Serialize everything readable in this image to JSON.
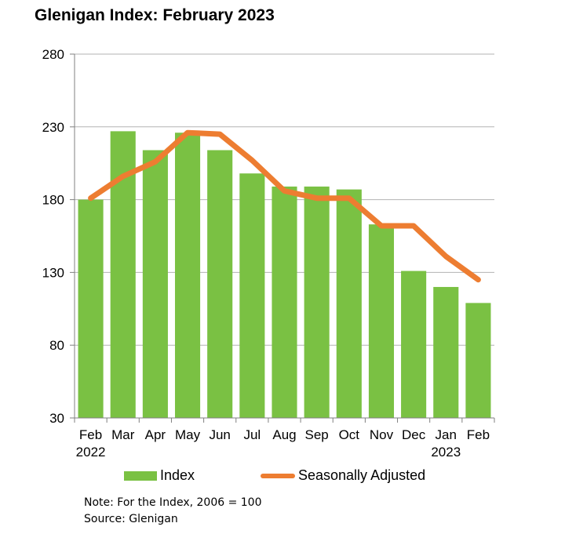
{
  "chart_data": {
    "type": "bar",
    "title": "Glenigan Index: February 2023",
    "categories": [
      "Feb",
      "Mar",
      "Apr",
      "May",
      "Jun",
      "Jul",
      "Aug",
      "Sep",
      "Oct",
      "Nov",
      "Dec",
      "Jan",
      "Feb"
    ],
    "category_years": [
      "2022",
      "",
      "",
      "",
      "",
      "",
      "",
      "",
      "",
      "",
      "",
      "2023",
      ""
    ],
    "series": [
      {
        "name": "Index",
        "type": "bar",
        "color": "#7ac143",
        "values": [
          180,
          227,
          214,
          226,
          214,
          198,
          189,
          189,
          187,
          163,
          131,
          120,
          109
        ]
      },
      {
        "name": "Seasonally Adjusted",
        "type": "line",
        "color": "#ed7d31",
        "values": [
          181,
          196,
          206,
          226,
          225,
          207,
          186,
          181,
          181,
          162,
          162,
          141,
          125
        ]
      }
    ],
    "ylim": [
      30,
      280
    ],
    "yticks": [
      30,
      80,
      130,
      180,
      230,
      280
    ],
    "grid": true,
    "legend_position": "bottom"
  },
  "notes": {
    "note": "Note: For the Index, 2006 = 100",
    "source": "Source: Glenigan"
  }
}
